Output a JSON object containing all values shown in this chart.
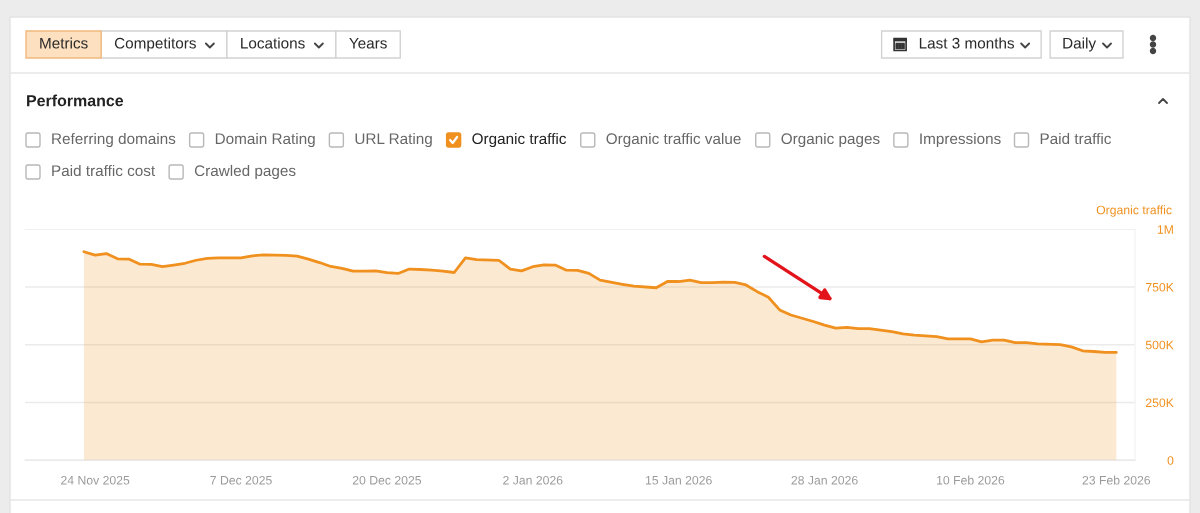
{
  "chart_data": {
    "type": "area",
    "title": "Performance",
    "ylabel": "Organic traffic",
    "annotations": [
      "Metrics",
      "Competitors",
      "Locations",
      "Years",
      "Last 3 months",
      "Daily",
      "Referring domains",
      "Domain Rating",
      "URL Rating",
      "Organic traffic",
      "Organic traffic value",
      "Organic pages",
      "Impressions",
      "Paid traffic",
      "Paid traffic cost",
      "Crawled pages"
    ],
    "x": [
      "2025-11-23",
      "2025-11-24",
      "2025-11-25",
      "2025-11-26",
      "2025-11-27",
      "2025-11-28",
      "2025-11-29",
      "2025-11-30",
      "2025-12-01",
      "2025-12-02",
      "2025-12-03",
      "2025-12-04",
      "2025-12-05",
      "2025-12-07",
      "2025-12-08",
      "2025-12-09",
      "2025-12-11",
      "2025-12-12",
      "2025-12-13",
      "2025-12-14",
      "2025-12-15",
      "2025-12-16",
      "2025-12-17",
      "2025-12-18",
      "2025-12-19",
      "2025-12-20",
      "2025-12-21",
      "2025-12-22",
      "2025-12-23",
      "2025-12-24",
      "2025-12-25",
      "2025-12-26",
      "2025-12-27",
      "2025-12-28",
      "2025-12-30",
      "2025-12-31",
      "2026-01-01",
      "2026-01-02",
      "2026-01-03",
      "2026-01-04",
      "2026-01-05",
      "2026-01-06",
      "2026-01-07",
      "2026-01-08",
      "2026-01-10",
      "2026-01-11",
      "2026-01-13",
      "2026-01-14",
      "2026-01-15",
      "2026-01-16",
      "2026-01-17",
      "2026-01-18",
      "2026-01-19",
      "2026-01-20",
      "2026-01-21",
      "2026-01-22",
      "2026-01-23",
      "2026-01-24",
      "2026-01-25",
      "2026-01-26",
      "2026-01-27",
      "2026-01-28",
      "2026-01-29",
      "2026-01-30",
      "2026-01-31",
      "2026-02-01",
      "2026-02-02",
      "2026-02-03",
      "2026-02-04",
      "2026-02-05",
      "2026-02-07",
      "2026-02-08",
      "2026-02-10",
      "2026-02-11",
      "2026-02-12",
      "2026-02-13",
      "2026-02-14",
      "2026-02-15",
      "2026-02-16",
      "2026-02-18",
      "2026-02-19",
      "2026-02-20",
      "2026-02-21",
      "2026-02-22",
      "2026-02-23"
    ],
    "series": [
      {
        "color": "#f0901e",
        "values": [
          903000,
          888000,
          895000,
          872000,
          871000,
          849000,
          848000,
          838000,
          845000,
          853000,
          866000,
          874000,
          876000,
          876000,
          885000,
          889000,
          887000,
          884000,
          871000,
          856000,
          839000,
          831000,
          819000,
          819000,
          820000,
          812000,
          809000,
          828000,
          826000,
          823000,
          819000,
          813000,
          876000,
          869000,
          865000,
          828000,
          820000,
          838000,
          846000,
          845000,
          823000,
          822000,
          809000,
          780000,
          762000,
          754000,
          747000,
          774000,
          774000,
          780000,
          769000,
          769000,
          771000,
          770000,
          759000,
          730000,
          706000,
          651000,
          629000,
          615000,
          601000,
          585000,
          572000,
          575000,
          570000,
          570000,
          563000,
          557000,
          547000,
          542000,
          535000,
          526000,
          526000,
          513000,
          520000,
          520000,
          509000,
          509000,
          504000,
          501000,
          491000,
          474000,
          471000,
          467000,
          467000
        ]
      }
    ],
    "xlim": [
      "2025-11-17T18:00",
      "2026-02-24T16:00"
    ],
    "xticks": [
      {
        "value": "2025-11-24",
        "label": "24 Nov 2025"
      },
      {
        "value": "2025-12-07",
        "label": "7 Dec 2025"
      },
      {
        "value": "2025-12-20",
        "label": "20 Dec 2025"
      },
      {
        "value": "2026-01-02",
        "label": "2 Jan 2026"
      },
      {
        "value": "2026-01-15",
        "label": "15 Jan 2026"
      },
      {
        "value": "2026-01-28",
        "label": "28 Jan 2026"
      },
      {
        "value": "2026-02-10",
        "label": "10 Feb 2026"
      },
      {
        "value": "2026-02-23",
        "label": "23 Feb 2026"
      }
    ],
    "ylim": [
      0,
      1000000
    ],
    "yticks": [
      0,
      {
        "value": 250000,
        "label": "250K"
      },
      {
        "value": 500000,
        "label": "500K"
      },
      {
        "value": 750000,
        "label": "750K"
      },
      {
        "value": 1000000,
        "label": "1M"
      }
    ],
    "grid": "y"
  }
}
